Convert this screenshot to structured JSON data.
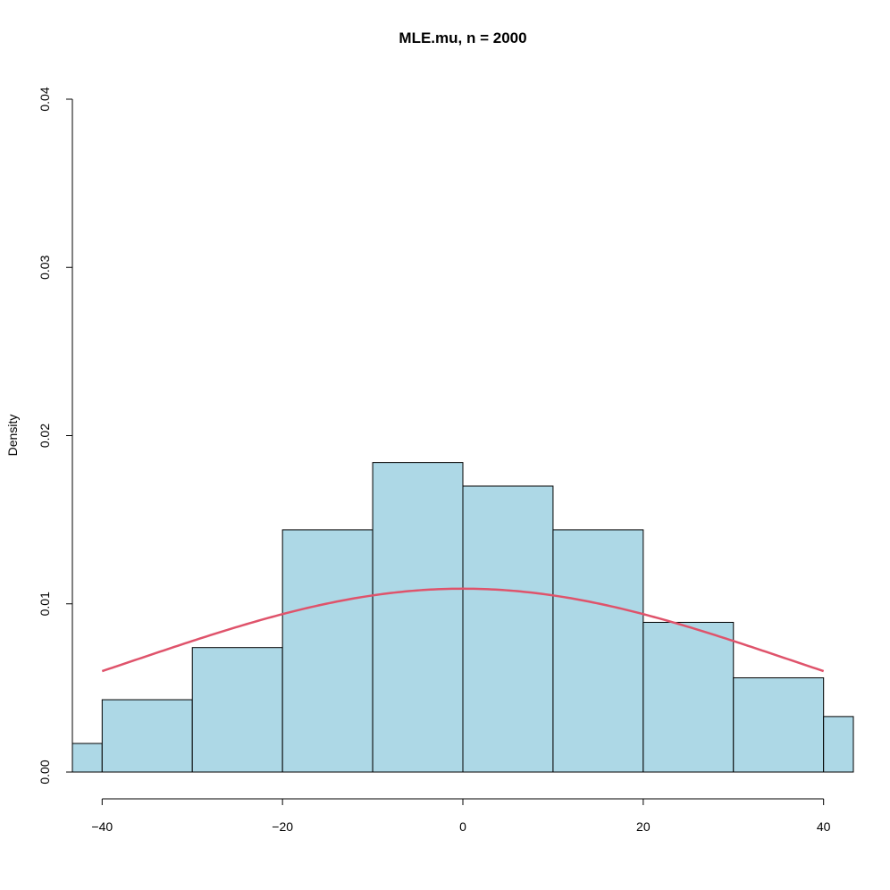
{
  "chart_data": {
    "type": "bar",
    "title": "MLE.mu, n = 2000",
    "xlabel": "",
    "ylabel": "Density",
    "xlim": [
      -43.3,
      43.3
    ],
    "ylim": [
      0,
      0.04
    ],
    "x_ticks": [
      -40,
      -20,
      0,
      20,
      40
    ],
    "x_tick_labels": [
      "−40",
      "−20",
      "0",
      "20",
      "40"
    ],
    "y_ticks": [
      0,
      0.01,
      0.02,
      0.03,
      0.04
    ],
    "y_tick_labels": [
      "0.00",
      "0.01",
      "0.02",
      "0.03",
      "0.04"
    ],
    "grid": false,
    "bins": [
      {
        "from": -50,
        "to": -40,
        "density": 0.0017
      },
      {
        "from": -40,
        "to": -30,
        "density": 0.0043
      },
      {
        "from": -30,
        "to": -20,
        "density": 0.0074
      },
      {
        "from": -20,
        "to": -10,
        "density": 0.0144
      },
      {
        "from": -10,
        "to": 0,
        "density": 0.0184
      },
      {
        "from": 0,
        "to": 10,
        "density": 0.017
      },
      {
        "from": 10,
        "to": 20,
        "density": 0.0144
      },
      {
        "from": 20,
        "to": 30,
        "density": 0.0089
      },
      {
        "from": 30,
        "to": 40,
        "density": 0.0056
      },
      {
        "from": 40,
        "to": 50,
        "density": 0.0033
      }
    ],
    "density_curve": {
      "type": "normal",
      "mean": 0,
      "sd": 36.6,
      "x_range": [
        -40,
        40
      ],
      "color": "#df536b"
    },
    "colors": {
      "bar_fill": "#add8e6",
      "bar_stroke": "#000000"
    }
  }
}
